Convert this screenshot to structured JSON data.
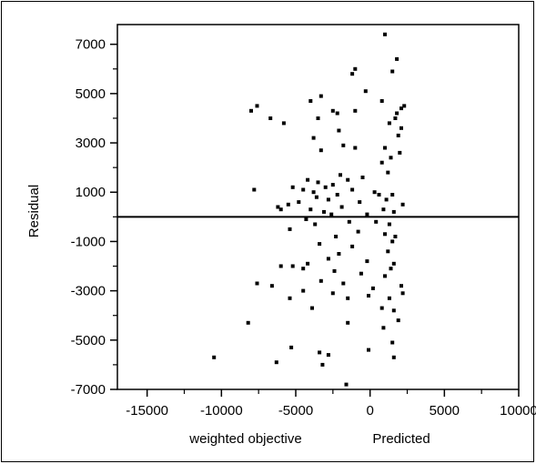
{
  "chart_data": {
    "type": "scatter",
    "title": "",
    "xlabel": "weighted objective",
    "xlabel2": "Predicted",
    "ylabel": "Residual",
    "xlim": [
      -17000,
      10000
    ],
    "ylim": [
      -7000,
      7800
    ],
    "x_ticks": [
      -15000,
      -10000,
      -5000,
      0,
      5000,
      10000
    ],
    "x_tick_labels": [
      "-15000",
      "-10000",
      "-5000",
      "0",
      "5000",
      "10000"
    ],
    "y_ticks": [
      7000,
      5000,
      3000,
      1000,
      -1000,
      -3000,
      -5000,
      -7000
    ],
    "y_tick_labels": [
      "7000",
      "5000",
      "3000",
      "1000",
      "-1000",
      "-3000",
      "-5000",
      "-7000"
    ],
    "reference_line_y": 0,
    "grid": false,
    "legend": "none",
    "point_color": "#000000",
    "points": [
      {
        "x": 1000,
        "y": 7400
      },
      {
        "x": 1800,
        "y": 6400
      },
      {
        "x": -1000,
        "y": 6000
      },
      {
        "x": -1200,
        "y": 5800
      },
      {
        "x": -300,
        "y": 5100
      },
      {
        "x": 1500,
        "y": 5900
      },
      {
        "x": -3300,
        "y": 4900
      },
      {
        "x": 800,
        "y": 4700
      },
      {
        "x": -2500,
        "y": 4300
      },
      {
        "x": 1800,
        "y": 4200
      },
      {
        "x": 2100,
        "y": 4400
      },
      {
        "x": 2300,
        "y": 4500
      },
      {
        "x": 1700,
        "y": 4000
      },
      {
        "x": -4000,
        "y": 4700
      },
      {
        "x": -3500,
        "y": 4000
      },
      {
        "x": -8000,
        "y": 4300
      },
      {
        "x": -7600,
        "y": 4500
      },
      {
        "x": -5800,
        "y": 3800
      },
      {
        "x": -6700,
        "y": 4000
      },
      {
        "x": -2200,
        "y": 4200
      },
      {
        "x": -1000,
        "y": 4300
      },
      {
        "x": 1300,
        "y": 3800
      },
      {
        "x": -2100,
        "y": 3500
      },
      {
        "x": -3800,
        "y": 3200
      },
      {
        "x": 1900,
        "y": 3300
      },
      {
        "x": 2100,
        "y": 3600
      },
      {
        "x": 1000,
        "y": 2800
      },
      {
        "x": 2000,
        "y": 2600
      },
      {
        "x": -1800,
        "y": 2900
      },
      {
        "x": -3300,
        "y": 2700
      },
      {
        "x": -1000,
        "y": 2800
      },
      {
        "x": 1400,
        "y": 2400
      },
      {
        "x": 800,
        "y": 2200
      },
      {
        "x": 1200,
        "y": 1800
      },
      {
        "x": -500,
        "y": 1600
      },
      {
        "x": -4200,
        "y": 1500
      },
      {
        "x": -3500,
        "y": 1400
      },
      {
        "x": -2000,
        "y": 1700
      },
      {
        "x": -1500,
        "y": 1500
      },
      {
        "x": -2500,
        "y": 1300
      },
      {
        "x": -3000,
        "y": 1200
      },
      {
        "x": -4500,
        "y": 1100
      },
      {
        "x": -5200,
        "y": 1200
      },
      {
        "x": -7800,
        "y": 1100
      },
      {
        "x": -3800,
        "y": 1000
      },
      {
        "x": -2200,
        "y": 900
      },
      {
        "x": -1200,
        "y": 1100
      },
      {
        "x": 300,
        "y": 1000
      },
      {
        "x": 600,
        "y": 900
      },
      {
        "x": 1500,
        "y": 900
      },
      {
        "x": -2800,
        "y": 700
      },
      {
        "x": -3600,
        "y": 800
      },
      {
        "x": -4800,
        "y": 600
      },
      {
        "x": -5500,
        "y": 500
      },
      {
        "x": -6200,
        "y": 400
      },
      {
        "x": -700,
        "y": 600
      },
      {
        "x": 1100,
        "y": 700
      },
      {
        "x": 2200,
        "y": 500
      },
      {
        "x": -1900,
        "y": 400
      },
      {
        "x": -4000,
        "y": 300
      },
      {
        "x": -6000,
        "y": 300
      },
      {
        "x": -3100,
        "y": 200
      },
      {
        "x": 900,
        "y": 300
      },
      {
        "x": 1600,
        "y": 200
      },
      {
        "x": -200,
        "y": 100
      },
      {
        "x": -2600,
        "y": 100
      },
      {
        "x": -4300,
        "y": -100
      },
      {
        "x": -1400,
        "y": -200
      },
      {
        "x": 400,
        "y": -200
      },
      {
        "x": 1300,
        "y": -300
      },
      {
        "x": -3700,
        "y": -300
      },
      {
        "x": -5400,
        "y": -500
      },
      {
        "x": -800,
        "y": -600
      },
      {
        "x": 1000,
        "y": -700
      },
      {
        "x": 1700,
        "y": -800
      },
      {
        "x": -2300,
        "y": -800
      },
      {
        "x": 1500,
        "y": -1000
      },
      {
        "x": -1200,
        "y": -1200
      },
      {
        "x": -3400,
        "y": -1100
      },
      {
        "x": 1200,
        "y": -1400
      },
      {
        "x": -2100,
        "y": -1500
      },
      {
        "x": -200,
        "y": -1800
      },
      {
        "x": 1600,
        "y": -1900
      },
      {
        "x": -2800,
        "y": -1700
      },
      {
        "x": -4200,
        "y": -1900
      },
      {
        "x": -6000,
        "y": -2000
      },
      {
        "x": -5200,
        "y": -2000
      },
      {
        "x": -4500,
        "y": -2100
      },
      {
        "x": -2400,
        "y": -2200
      },
      {
        "x": -600,
        "y": -2300
      },
      {
        "x": 1400,
        "y": -2100
      },
      {
        "x": 1000,
        "y": -2400
      },
      {
        "x": -7600,
        "y": -2700
      },
      {
        "x": -6600,
        "y": -2800
      },
      {
        "x": -3300,
        "y": -2600
      },
      {
        "x": -1800,
        "y": -2700
      },
      {
        "x": 200,
        "y": -2900
      },
      {
        "x": 2100,
        "y": -2800
      },
      {
        "x": -4500,
        "y": -3000
      },
      {
        "x": -2500,
        "y": -3100
      },
      {
        "x": -1500,
        "y": -3300
      },
      {
        "x": -100,
        "y": -3200
      },
      {
        "x": 1300,
        "y": -3300
      },
      {
        "x": 2200,
        "y": -3100
      },
      {
        "x": -5400,
        "y": -3300
      },
      {
        "x": -3900,
        "y": -3700
      },
      {
        "x": 800,
        "y": -3700
      },
      {
        "x": 1600,
        "y": -3800
      },
      {
        "x": -8200,
        "y": -4300
      },
      {
        "x": -1500,
        "y": -4300
      },
      {
        "x": 900,
        "y": -4500
      },
      {
        "x": 1900,
        "y": -4200
      },
      {
        "x": -5300,
        "y": -5300
      },
      {
        "x": 1500,
        "y": -5100
      },
      {
        "x": -10500,
        "y": -5700
      },
      {
        "x": -6300,
        "y": -5900
      },
      {
        "x": -3400,
        "y": -5500
      },
      {
        "x": -2800,
        "y": -5600
      },
      {
        "x": -100,
        "y": -5400
      },
      {
        "x": 1600,
        "y": -5700
      },
      {
        "x": -3200,
        "y": -6000
      },
      {
        "x": -1600,
        "y": -6800
      }
    ]
  }
}
